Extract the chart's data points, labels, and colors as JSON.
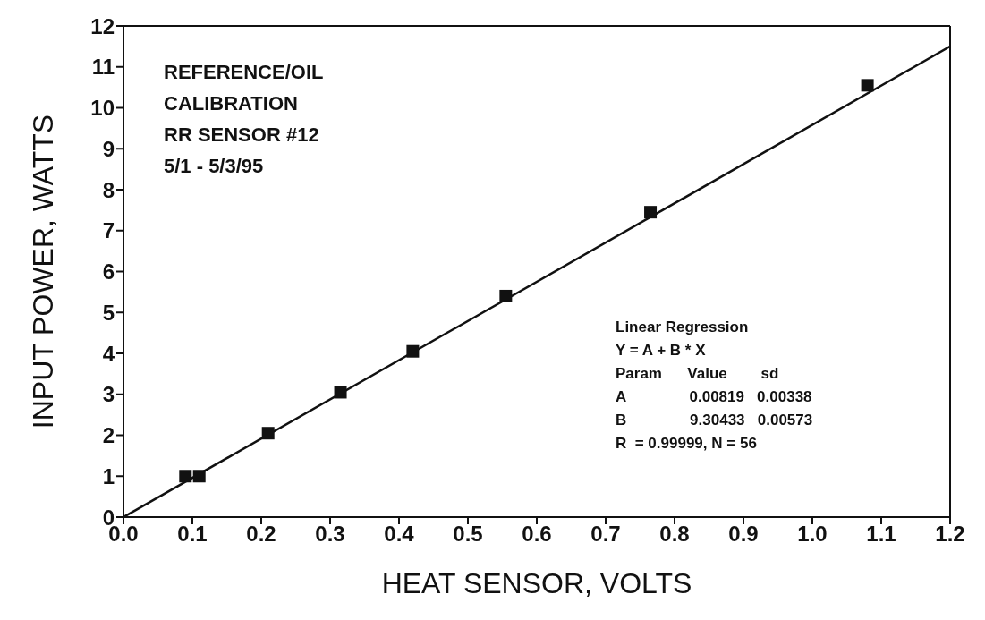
{
  "chart_data": {
    "type": "scatter",
    "xlabel": "HEAT SENSOR, VOLTS",
    "ylabel": "INPUT POWER, WATTS",
    "xlim": [
      0,
      1.2
    ],
    "xticks": [
      {
        "value": 0,
        "label": "0.0"
      },
      0.1,
      0.2,
      0.3,
      0.4,
      0.5,
      0.6,
      0.7,
      0.8,
      0.9,
      {
        "value": 1,
        "label": "1.0"
      },
      1.1,
      1.2
    ],
    "ylim": [
      0,
      12
    ],
    "yticks": [
      0,
      1,
      2,
      3,
      4,
      5,
      6,
      7,
      8,
      9,
      10,
      11,
      12
    ],
    "series": [
      {
        "color": "#111111",
        "marker": "square",
        "x": [
          0.09,
          0.11,
          0.21,
          0.315,
          0.42,
          0.555,
          0.765,
          1.08
        ],
        "values": [
          1.0,
          1.0,
          2.05,
          3.05,
          4.05,
          5.4,
          7.45,
          10.55
        ]
      },
      {
        "type": "line",
        "color": "#111111",
        "marker": "none",
        "x": [
          0,
          1.2
        ],
        "values": [
          0,
          11.5
        ]
      }
    ],
    "annotations": [
      "REFERENCE/OIL",
      "CALIBRATION",
      "RR SENSOR #12",
      "5/1 - 5/3/95",
      "Linear Regression",
      "Y = A + B * X",
      "Param      Value        sd",
      "A               0.00819   0.00338",
      "B               9.30433   0.00573",
      "R  = 0.99999, N = 56"
    ]
  }
}
